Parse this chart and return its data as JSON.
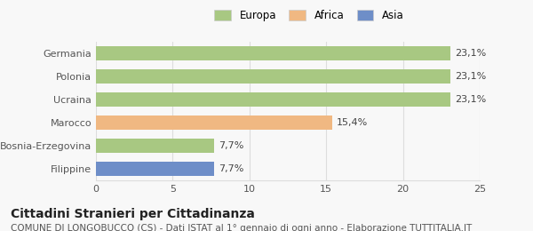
{
  "categories": [
    "Germania",
    "Polonia",
    "Ucraina",
    "Marocco",
    "Bosnia-Erzegovina",
    "Filippine"
  ],
  "values": [
    23.1,
    23.1,
    23.1,
    15.4,
    7.7,
    7.7
  ],
  "labels": [
    "23,1%",
    "23,1%",
    "23,1%",
    "15,4%",
    "7,7%",
    "7,7%"
  ],
  "colors": [
    "#a8c882",
    "#a8c882",
    "#a8c882",
    "#f0b882",
    "#a8c882",
    "#6e8ec8"
  ],
  "legend_items": [
    {
      "label": "Europa",
      "color": "#a8c882"
    },
    {
      "label": "Africa",
      "color": "#f0b882"
    },
    {
      "label": "Asia",
      "color": "#6e8ec8"
    }
  ],
  "xlim": [
    0,
    25
  ],
  "xticks": [
    0,
    5,
    10,
    15,
    20,
    25
  ],
  "title": "Cittadini Stranieri per Cittadinanza",
  "subtitle": "COMUNE DI LONGOBUCCO (CS) - Dati ISTAT al 1° gennaio di ogni anno - Elaborazione TUTTITALIA.IT",
  "bg_color": "#f8f8f8",
  "grid_color": "#dddddd",
  "title_fontsize": 10,
  "subtitle_fontsize": 7.5,
  "label_fontsize": 8,
  "tick_fontsize": 8
}
